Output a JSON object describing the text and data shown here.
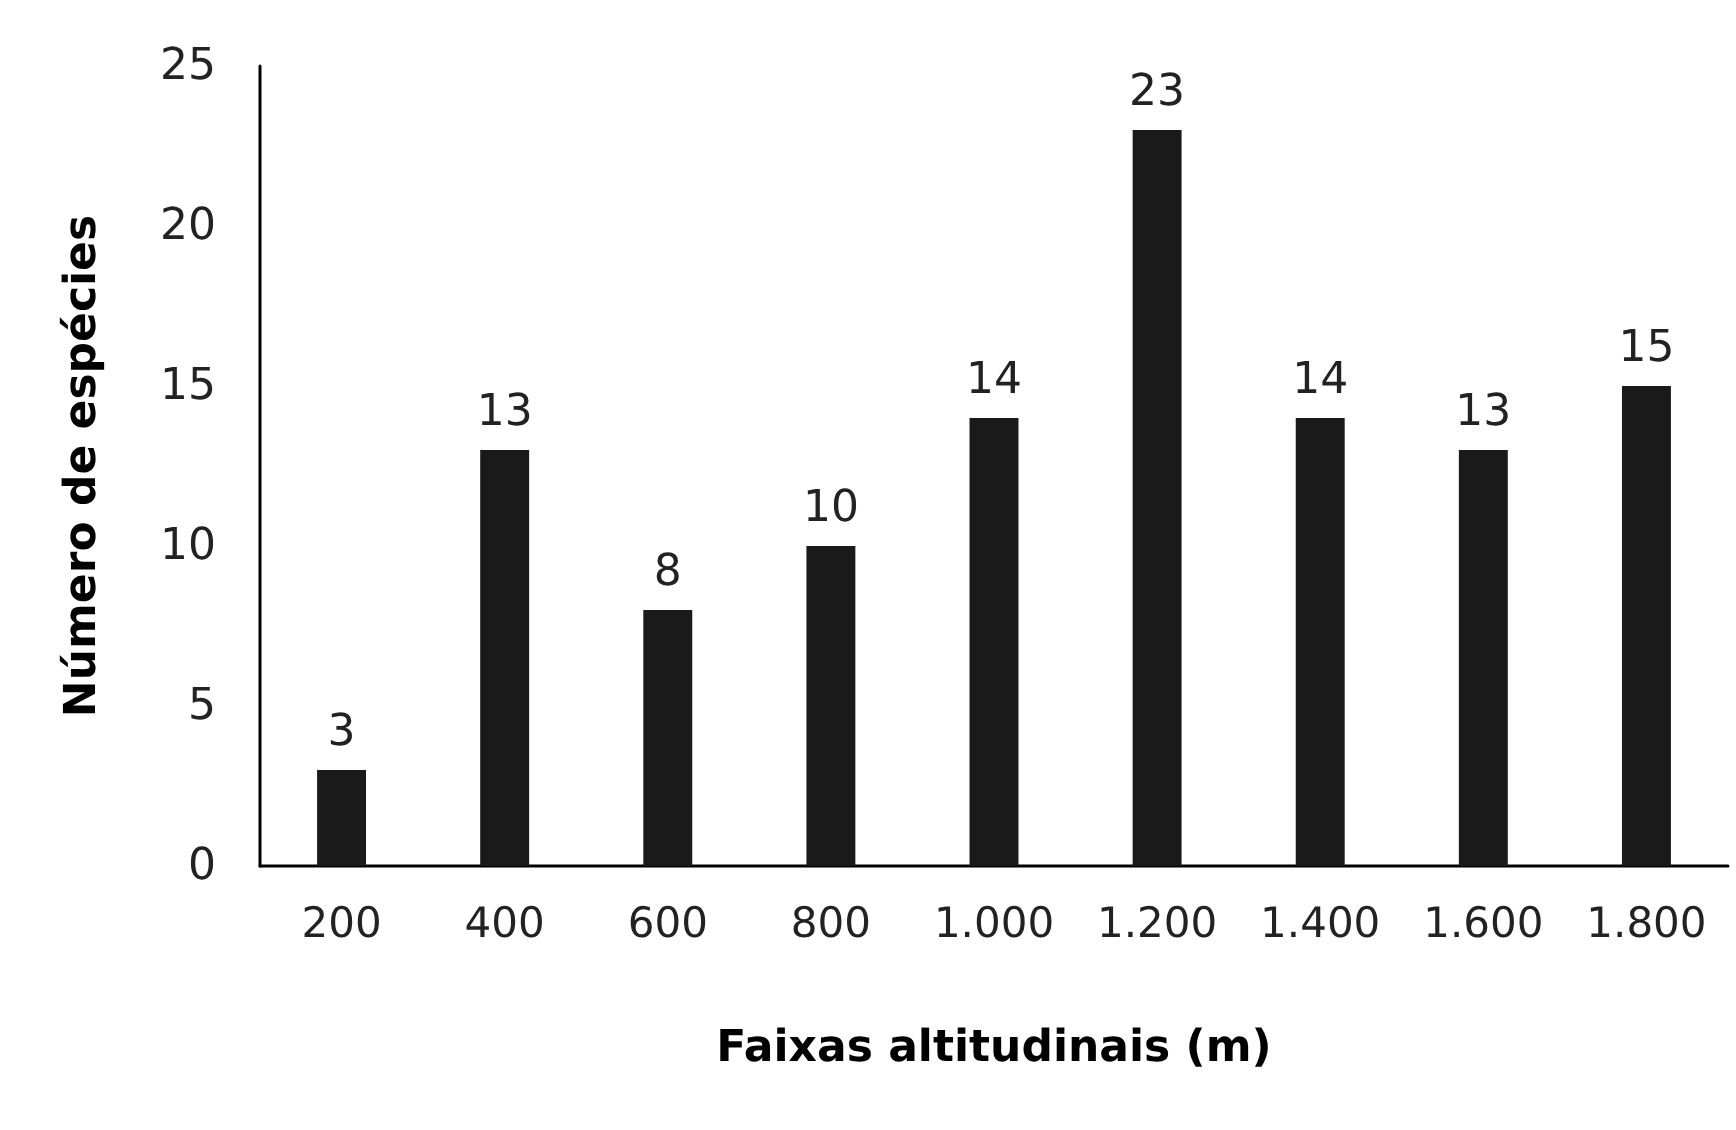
{
  "chart_data": {
    "type": "bar",
    "xlabel": "Faixas altitudinais (m)",
    "ylabel": "Número de espécies",
    "categories": [
      "200",
      "400",
      "600",
      "800",
      "1.000",
      "1.200",
      "1.400",
      "1.600",
      "1.800"
    ],
    "values": [
      3,
      13,
      8,
      10,
      14,
      23,
      14,
      13,
      15
    ],
    "color": "#1a1a1a",
    "ylim": [
      0,
      25
    ],
    "yticks": [
      0,
      5,
      10,
      15,
      20,
      25
    ],
    "grid": false,
    "data_labels": true
  }
}
